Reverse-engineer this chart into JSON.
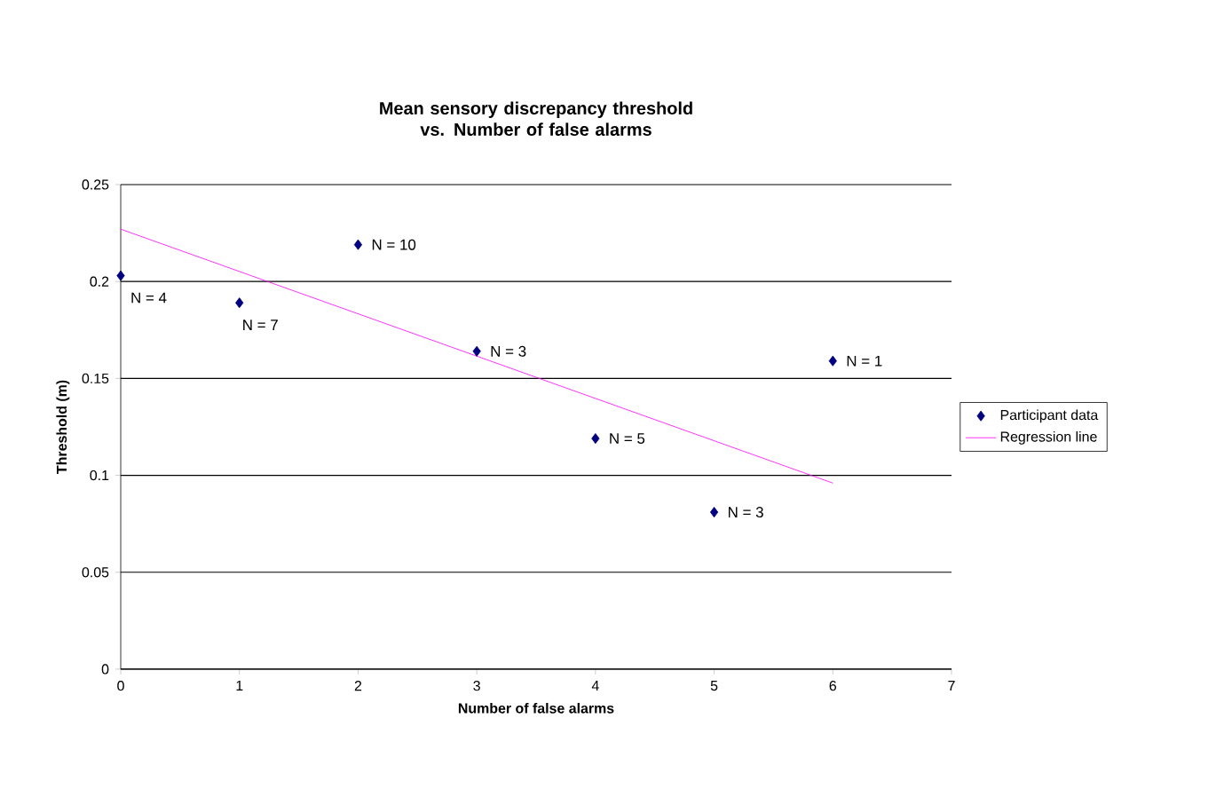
{
  "chart_data": {
    "type": "scatter",
    "title": "Mean sensory discrepancy threshold vs. Number of false alarms",
    "xlabel": "Number of false alarms",
    "ylabel": "Threshold (m)",
    "xlim": [
      0,
      7
    ],
    "xticks": [
      0,
      1,
      2,
      3,
      4,
      5,
      6,
      7
    ],
    "ylim": [
      0,
      0.25
    ],
    "yticks": [
      0,
      0.05,
      0.1,
      0.15,
      0.2,
      0.25
    ],
    "grid": "y",
    "legend": "right",
    "series": [
      {
        "name": "Participant data",
        "marker": "diamond",
        "color": "#000080",
        "x": [
          0,
          1,
          2,
          3,
          4,
          5,
          6
        ],
        "values": [
          0.203,
          0.189,
          0.219,
          0.164,
          0.119,
          0.081,
          0.159
        ]
      },
      {
        "name": "Regression line",
        "type": "line",
        "marker": "none",
        "color": "#ff00ff",
        "x": [
          0,
          6
        ],
        "values": [
          0.227,
          0.096
        ]
      }
    ],
    "annotations": [
      {
        "text": "N = 4",
        "x": 0,
        "y": 0.203
      },
      {
        "text": "N = 7",
        "x": 1,
        "y": 0.189
      },
      {
        "text": "N = 10",
        "x": 2,
        "y": 0.219
      },
      {
        "text": "N = 3",
        "x": 3,
        "y": 0.164
      },
      {
        "text": "N = 5",
        "x": 4,
        "y": 0.119
      },
      {
        "text": "N = 3",
        "x": 5,
        "y": 0.081
      },
      {
        "text": "N = 1",
        "x": 6,
        "y": 0.159
      }
    ]
  }
}
